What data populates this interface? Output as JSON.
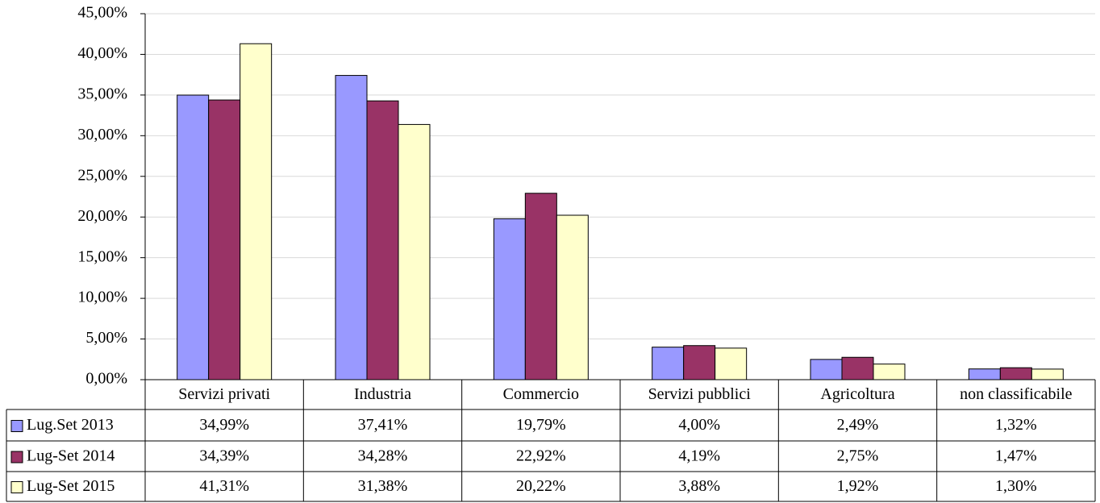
{
  "chart_data": {
    "type": "bar",
    "categories": [
      "Servizi privati",
      "Industria",
      "Commercio",
      "Servizi pubblici",
      "Agricoltura",
      "non classificabile"
    ],
    "series": [
      {
        "name": "Lug.Set 2013",
        "color": "#9999ff",
        "values": [
          34.99,
          37.41,
          19.79,
          4.0,
          2.49,
          1.32
        ],
        "value_labels": [
          "34,99%",
          "37,41%",
          "19,79%",
          "4,00%",
          "2,49%",
          "1,32%"
        ]
      },
      {
        "name": "Lug-Set 2014",
        "color": "#993366",
        "values": [
          34.39,
          34.28,
          22.92,
          4.19,
          2.75,
          1.47
        ],
        "value_labels": [
          "34,39%",
          "34,28%",
          "22,92%",
          "4,19%",
          "2,75%",
          "1,47%"
        ]
      },
      {
        "name": "Lug-Set 2015",
        "color": "#ffffcc",
        "values": [
          41.31,
          31.38,
          20.22,
          3.88,
          1.92,
          1.3
        ],
        "value_labels": [
          "41,31%",
          "31,38%",
          "20,22%",
          "3,88%",
          "1,92%",
          "1,30%"
        ]
      }
    ],
    "ylim": [
      0,
      45
    ],
    "yticks": [
      {
        "value": 0,
        "label": "0,00%"
      },
      {
        "value": 5,
        "label": "5,00%"
      },
      {
        "value": 10,
        "label": "10,00%"
      },
      {
        "value": 15,
        "label": "15,00%"
      },
      {
        "value": 20,
        "label": "20,00%"
      },
      {
        "value": 25,
        "label": "25,00%"
      },
      {
        "value": 30,
        "label": "30,00%"
      },
      {
        "value": 35,
        "label": "35,00%"
      },
      {
        "value": 40,
        "label": "40,00%"
      },
      {
        "value": 45,
        "label": "45,00%"
      }
    ],
    "grid": true
  }
}
